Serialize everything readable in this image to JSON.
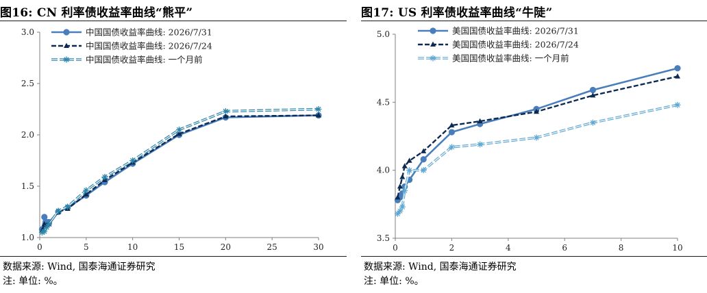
{
  "chart_data": [
    {
      "type": "line",
      "title": "图16:  CN 利率债收益率曲线“熊平”",
      "xlim": [
        0,
        30
      ],
      "ylim": [
        1.0,
        3.0
      ],
      "xticks": [
        0,
        5,
        10,
        15,
        20,
        25,
        30
      ],
      "yticks": [
        "1.0",
        "1.5",
        "2.0",
        "2.5",
        "3.0"
      ],
      "legend_position": "top-left",
      "series": [
        {
          "name": "中国国债收益率曲线: 2026/7/31",
          "color": "#4a7ebb",
          "style": "solid-circle",
          "x": [
            0.25,
            0.5,
            0.75,
            1,
            2,
            3,
            5,
            7,
            10,
            15,
            20,
            30
          ],
          "y": [
            1.08,
            1.2,
            1.15,
            1.15,
            1.25,
            1.29,
            1.41,
            1.54,
            1.72,
            2.0,
            2.17,
            2.19
          ]
        },
        {
          "name": "中国国债收益率曲线: 2026/7/24",
          "color": "#0d2a52",
          "style": "dash-triangle",
          "x": [
            0.25,
            0.5,
            0.75,
            1,
            2,
            3,
            5,
            7,
            10,
            15,
            20,
            30
          ],
          "y": [
            1.07,
            1.13,
            1.12,
            1.13,
            1.25,
            1.28,
            1.42,
            1.56,
            1.73,
            2.01,
            2.18,
            2.19
          ]
        },
        {
          "name": "中国国债收益率曲线: 一个月前",
          "color": "#2e86ab",
          "style": "double-star",
          "x": [
            0.25,
            0.5,
            0.75,
            1,
            2,
            3,
            5,
            7,
            10,
            15,
            20,
            30
          ],
          "y": [
            1.05,
            1.06,
            1.1,
            1.13,
            1.26,
            1.3,
            1.46,
            1.59,
            1.75,
            2.05,
            2.23,
            2.25
          ]
        }
      ]
    },
    {
      "type": "line",
      "title": "图17:  US 利率债收益率曲线“牛陡”",
      "xlim": [
        0,
        10
      ],
      "ylim": [
        3.5,
        5.0
      ],
      "xticks": [
        0,
        2,
        4,
        6,
        8,
        10
      ],
      "yticks": [
        "3.5",
        "4.0",
        "4.5",
        "5.0"
      ],
      "legend_position": "top-center",
      "series": [
        {
          "name": "美国国债收益率曲线: 2026/7/31",
          "color": "#4a7ebb",
          "style": "solid-circle",
          "x": [
            0.083,
            0.167,
            0.25,
            0.333,
            0.5,
            1,
            2,
            3,
            5,
            7,
            10
          ],
          "y": [
            3.78,
            3.8,
            3.83,
            3.88,
            3.93,
            4.08,
            4.28,
            4.34,
            4.45,
            4.59,
            4.75
          ]
        },
        {
          "name": "美国国债收益率曲线: 2026/7/24",
          "color": "#0d2a52",
          "style": "dash-triangle",
          "x": [
            0.083,
            0.167,
            0.25,
            0.333,
            0.5,
            1,
            2,
            3,
            5,
            7,
            10
          ],
          "y": [
            3.8,
            3.88,
            3.95,
            4.03,
            4.07,
            4.14,
            4.33,
            4.36,
            4.43,
            4.55,
            4.69
          ]
        },
        {
          "name": "美国国债收益率曲线: 一个月前",
          "color": "#5fa8d3",
          "style": "double-star",
          "x": [
            0.083,
            0.167,
            0.25,
            0.333,
            0.5,
            1,
            2,
            3,
            5,
            7,
            10
          ],
          "y": [
            3.68,
            3.7,
            3.73,
            3.85,
            4.0,
            4.0,
            4.17,
            4.19,
            4.24,
            4.35,
            4.48
          ]
        }
      ]
    }
  ],
  "sources": [
    {
      "line1": "数据来源:  Wind, 国泰海通证券研究",
      "line2": "注:  单位:  %。"
    },
    {
      "line1": "数据来源:  Wind, 国泰海通证券研究",
      "line2": "注:  单位:  %。"
    }
  ]
}
